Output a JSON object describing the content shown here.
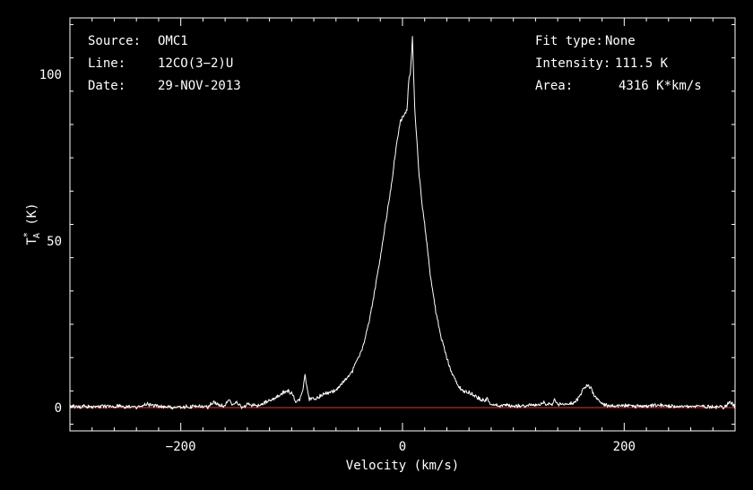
{
  "chart_data": {
    "type": "line",
    "title": "",
    "xlabel": "Velocity (km/s)",
    "ylabel": {
      "base": "T",
      "sup": "*",
      "sub": "A",
      "unit": " (K)"
    },
    "xlim": [
      -300,
      300
    ],
    "ylim": [
      -7,
      117
    ],
    "xticks": [
      -200,
      0,
      200
    ],
    "xtick_labels": [
      "−200",
      "0",
      "200"
    ],
    "yticks": [
      0,
      50,
      100
    ],
    "ytick_labels": [
      "0",
      "50",
      "100"
    ],
    "grid": false,
    "baseline": 0,
    "colors": {
      "background": "#000000",
      "frame": "#ffffff",
      "spectrum": "#ffffff",
      "baseline": "#cc2222"
    },
    "info_left": [
      {
        "key": "Source:",
        "value": "OMC1"
      },
      {
        "key": "Line:",
        "value": "12CO(3−2)U"
      },
      {
        "key": "Date:",
        "value": "29-NOV-2013"
      }
    ],
    "info_right": [
      {
        "key": "Fit type:",
        "value": "None"
      },
      {
        "key": "Intensity:",
        "value": "111.5 K"
      },
      {
        "key": "Area:",
        "value": "4316 K*km/s"
      }
    ],
    "series": [
      {
        "x": [
          -300,
          -280,
          -260,
          -240,
          -230,
          -220,
          -200,
          -185,
          -175,
          -170,
          -165,
          -160,
          -157,
          -153,
          -150,
          -145,
          -140,
          -130,
          -120,
          -110,
          -104,
          -100,
          -97,
          -93,
          -90,
          -88,
          -86,
          -84,
          -82,
          -80,
          -75,
          -70,
          -65,
          -60,
          -55,
          -50,
          -45,
          -40,
          -35,
          -30,
          -25,
          -20,
          -15,
          -10,
          -5,
          -2,
          0,
          2,
          3,
          4,
          5,
          6,
          7,
          8,
          9,
          10,
          11,
          12,
          13,
          15,
          18,
          20,
          25,
          30,
          35,
          40,
          45,
          50,
          55,
          60,
          65,
          70,
          75,
          76,
          78,
          80,
          85,
          90,
          95,
          100,
          110,
          115,
          120,
          125,
          127,
          130,
          135,
          137,
          140,
          145,
          150,
          155,
          158,
          162,
          165,
          168,
          170,
          173,
          176,
          180,
          185,
          190,
          195,
          200,
          210,
          220,
          230,
          240,
          250,
          260,
          270,
          280,
          290,
          295,
          300
        ],
        "y": [
          0.3,
          0.2,
          0.4,
          0.2,
          0.9,
          0.3,
          0.1,
          0.4,
          0.3,
          1.8,
          0.6,
          0.6,
          2.4,
          0.8,
          1.6,
          0.2,
          0.8,
          0.6,
          2,
          4,
          5,
          4.4,
          2,
          2.5,
          5,
          9.5,
          6,
          2.5,
          2.6,
          2.7,
          3.2,
          4.3,
          4.5,
          5.3,
          7,
          8.8,
          11,
          15,
          19,
          26,
          35,
          45,
          56,
          67,
          80,
          86,
          87,
          88,
          88.5,
          89,
          95,
          99.5,
          100,
          105,
          111.5,
          100,
          90,
          85,
          80,
          70,
          60,
          55,
          40,
          29,
          21,
          15,
          10,
          6.5,
          5,
          4.6,
          3.6,
          2.6,
          2,
          2.8,
          1.5,
          1,
          0.8,
          0.6,
          0.7,
          0.5,
          0.6,
          0.8,
          0.7,
          1,
          1.5,
          0.8,
          0.8,
          2.4,
          0.9,
          0.8,
          1.2,
          1.5,
          2.5,
          5,
          6.3,
          6.5,
          6,
          3.5,
          2.5,
          1,
          0.6,
          0.5,
          0.4,
          0.6,
          0.4,
          0.3,
          0.7,
          0.4,
          0.5,
          0.3,
          0.4,
          0.3,
          0.2,
          1.5,
          0.4
        ]
      }
    ]
  }
}
